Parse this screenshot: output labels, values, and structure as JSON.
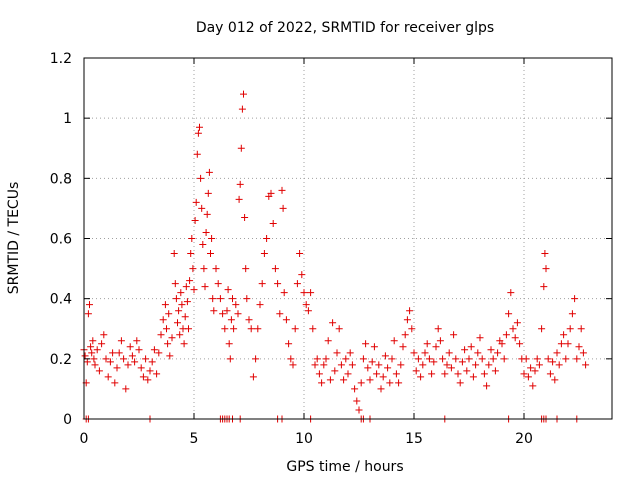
{
  "chart_data": {
    "type": "scatter",
    "title": "Day 012 of 2022, SRMTID for receiver glps",
    "xlabel": "GPS time / hours",
    "ylabel": "SRMTID / TECUs",
    "xlim": [
      0,
      24
    ],
    "ylim": [
      0,
      1.2
    ],
    "xticks": [
      0,
      5,
      10,
      15,
      20
    ],
    "xtick_labels": [
      "0",
      "5",
      "10",
      "15",
      "20"
    ],
    "yticks": [
      0,
      0.2,
      0.4,
      0.6,
      0.8,
      1,
      1.2
    ],
    "ytick_labels": [
      "0",
      "0.2",
      "0.4",
      "0.6",
      "0.8",
      "1",
      "1.2"
    ],
    "grid": true,
    "marker": "+",
    "color": "#e00000",
    "series": [
      {
        "name": "SRMTID",
        "points": [
          [
            0.0,
            0.23
          ],
          [
            0.05,
            0.21
          ],
          [
            0.1,
            0.12
          ],
          [
            0.15,
            0.19
          ],
          [
            0.2,
            0.35
          ],
          [
            0.25,
            0.38
          ],
          [
            0.3,
            0.24
          ],
          [
            0.35,
            0.22
          ],
          [
            0.4,
            0.26
          ],
          [
            0.45,
            0.2
          ],
          [
            0.5,
            0.18
          ],
          [
            0.6,
            0.23
          ],
          [
            0.7,
            0.16
          ],
          [
            0.8,
            0.25
          ],
          [
            0.9,
            0.28
          ],
          [
            1.0,
            0.2
          ],
          [
            1.1,
            0.14
          ],
          [
            1.2,
            0.19
          ],
          [
            1.3,
            0.22
          ],
          [
            1.4,
            0.12
          ],
          [
            1.5,
            0.17
          ],
          [
            1.6,
            0.22
          ],
          [
            1.7,
            0.26
          ],
          [
            1.8,
            0.2
          ],
          [
            1.9,
            0.1
          ],
          [
            2.0,
            0.18
          ],
          [
            2.1,
            0.24
          ],
          [
            2.2,
            0.21
          ],
          [
            2.3,
            0.19
          ],
          [
            2.4,
            0.26
          ],
          [
            2.5,
            0.23
          ],
          [
            2.6,
            0.17
          ],
          [
            2.7,
            0.14
          ],
          [
            2.8,
            0.2
          ],
          [
            2.9,
            0.13
          ],
          [
            3.0,
            0.16
          ],
          [
            3.1,
            0.19
          ],
          [
            3.2,
            0.23
          ],
          [
            3.3,
            0.15
          ],
          [
            3.4,
            0.22
          ],
          [
            3.5,
            0.28
          ],
          [
            3.6,
            0.33
          ],
          [
            3.7,
            0.38
          ],
          [
            3.75,
            0.3
          ],
          [
            3.8,
            0.25
          ],
          [
            3.85,
            0.35
          ],
          [
            3.9,
            0.21
          ],
          [
            4.0,
            0.27
          ],
          [
            4.1,
            0.55
          ],
          [
            4.15,
            0.45
          ],
          [
            4.2,
            0.4
          ],
          [
            4.25,
            0.32
          ],
          [
            4.3,
            0.36
          ],
          [
            4.35,
            0.28
          ],
          [
            4.4,
            0.42
          ],
          [
            4.45,
            0.38
          ],
          [
            4.5,
            0.3
          ],
          [
            4.55,
            0.25
          ],
          [
            4.6,
            0.34
          ],
          [
            4.65,
            0.44
          ],
          [
            4.7,
            0.39
          ],
          [
            4.75,
            0.3
          ],
          [
            4.8,
            0.46
          ],
          [
            4.85,
            0.55
          ],
          [
            4.9,
            0.6
          ],
          [
            4.95,
            0.5
          ],
          [
            5.0,
            0.43
          ],
          [
            5.05,
            0.66
          ],
          [
            5.1,
            0.72
          ],
          [
            5.15,
            0.88
          ],
          [
            5.2,
            0.95
          ],
          [
            5.25,
            0.97
          ],
          [
            5.3,
            0.8
          ],
          [
            5.35,
            0.7
          ],
          [
            5.4,
            0.58
          ],
          [
            5.45,
            0.5
          ],
          [
            5.5,
            0.44
          ],
          [
            5.55,
            0.62
          ],
          [
            5.6,
            0.68
          ],
          [
            5.65,
            0.75
          ],
          [
            5.7,
            0.82
          ],
          [
            5.75,
            0.55
          ],
          [
            5.8,
            0.6
          ],
          [
            5.85,
            0.4
          ],
          [
            5.9,
            0.36
          ],
          [
            6.0,
            0.5
          ],
          [
            6.1,
            0.45
          ],
          [
            6.2,
            0.4
          ],
          [
            6.3,
            0.35
          ],
          [
            6.4,
            0.3
          ],
          [
            6.5,
            0.36
          ],
          [
            6.55,
            0.43
          ],
          [
            6.6,
            0.25
          ],
          [
            6.65,
            0.2
          ],
          [
            6.7,
            0.33
          ],
          [
            6.75,
            0.4
          ],
          [
            6.8,
            0.3
          ],
          [
            6.9,
            0.38
          ],
          [
            7.0,
            0.35
          ],
          [
            7.05,
            0.73
          ],
          [
            7.1,
            0.78
          ],
          [
            7.15,
            0.9
          ],
          [
            7.2,
            1.03
          ],
          [
            7.25,
            1.08
          ],
          [
            7.3,
            0.67
          ],
          [
            7.35,
            0.5
          ],
          [
            7.4,
            0.4
          ],
          [
            7.5,
            0.33
          ],
          [
            7.6,
            0.3
          ],
          [
            7.7,
            0.14
          ],
          [
            7.8,
            0.2
          ],
          [
            7.9,
            0.3
          ],
          [
            8.0,
            0.38
          ],
          [
            8.1,
            0.45
          ],
          [
            8.2,
            0.55
          ],
          [
            8.3,
            0.6
          ],
          [
            8.4,
            0.74
          ],
          [
            8.5,
            0.75
          ],
          [
            8.6,
            0.65
          ],
          [
            8.7,
            0.5
          ],
          [
            8.8,
            0.45
          ],
          [
            8.9,
            0.35
          ],
          [
            9.0,
            0.76
          ],
          [
            9.05,
            0.7
          ],
          [
            9.1,
            0.42
          ],
          [
            9.2,
            0.33
          ],
          [
            9.3,
            0.25
          ],
          [
            9.4,
            0.2
          ],
          [
            9.5,
            0.18
          ],
          [
            9.6,
            0.3
          ],
          [
            9.7,
            0.45
          ],
          [
            9.8,
            0.55
          ],
          [
            9.9,
            0.48
          ],
          [
            10.0,
            0.42
          ],
          [
            10.1,
            0.38
          ],
          [
            10.2,
            0.36
          ],
          [
            10.3,
            0.42
          ],
          [
            10.4,
            0.3
          ],
          [
            10.5,
            0.18
          ],
          [
            10.6,
            0.2
          ],
          [
            10.7,
            0.15
          ],
          [
            10.8,
            0.12
          ],
          [
            10.9,
            0.18
          ],
          [
            11.0,
            0.2
          ],
          [
            11.1,
            0.26
          ],
          [
            11.2,
            0.13
          ],
          [
            11.3,
            0.32
          ],
          [
            11.4,
            0.16
          ],
          [
            11.5,
            0.22
          ],
          [
            11.6,
            0.3
          ],
          [
            11.7,
            0.18
          ],
          [
            11.8,
            0.13
          ],
          [
            11.9,
            0.2
          ],
          [
            12.0,
            0.15
          ],
          [
            12.1,
            0.22
          ],
          [
            12.2,
            0.18
          ],
          [
            12.3,
            0.1
          ],
          [
            12.4,
            0.06
          ],
          [
            12.5,
            0.03
          ],
          [
            12.6,
            0.12
          ],
          [
            12.7,
            0.2
          ],
          [
            12.8,
            0.25
          ],
          [
            12.9,
            0.17
          ],
          [
            13.0,
            0.13
          ],
          [
            13.1,
            0.19
          ],
          [
            13.2,
            0.24
          ],
          [
            13.3,
            0.15
          ],
          [
            13.4,
            0.18
          ],
          [
            13.5,
            0.1
          ],
          [
            13.6,
            0.14
          ],
          [
            13.7,
            0.21
          ],
          [
            13.8,
            0.17
          ],
          [
            13.9,
            0.12
          ],
          [
            14.0,
            0.2
          ],
          [
            14.1,
            0.26
          ],
          [
            14.2,
            0.15
          ],
          [
            14.3,
            0.12
          ],
          [
            14.4,
            0.18
          ],
          [
            14.5,
            0.24
          ],
          [
            14.6,
            0.28
          ],
          [
            14.7,
            0.33
          ],
          [
            14.8,
            0.36
          ],
          [
            14.9,
            0.3
          ],
          [
            15.0,
            0.22
          ],
          [
            15.1,
            0.16
          ],
          [
            15.2,
            0.2
          ],
          [
            15.3,
            0.14
          ],
          [
            15.4,
            0.18
          ],
          [
            15.5,
            0.22
          ],
          [
            15.6,
            0.25
          ],
          [
            15.7,
            0.2
          ],
          [
            15.8,
            0.15
          ],
          [
            15.9,
            0.19
          ],
          [
            16.0,
            0.24
          ],
          [
            16.1,
            0.3
          ],
          [
            16.2,
            0.26
          ],
          [
            16.3,
            0.2
          ],
          [
            16.4,
            0.15
          ],
          [
            16.5,
            0.18
          ],
          [
            16.6,
            0.22
          ],
          [
            16.7,
            0.17
          ],
          [
            16.8,
            0.28
          ],
          [
            16.9,
            0.2
          ],
          [
            17.0,
            0.15
          ],
          [
            17.1,
            0.12
          ],
          [
            17.2,
            0.19
          ],
          [
            17.3,
            0.23
          ],
          [
            17.4,
            0.16
          ],
          [
            17.5,
            0.2
          ],
          [
            17.6,
            0.24
          ],
          [
            17.7,
            0.14
          ],
          [
            17.8,
            0.18
          ],
          [
            17.9,
            0.22
          ],
          [
            18.0,
            0.27
          ],
          [
            18.1,
            0.2
          ],
          [
            18.2,
            0.15
          ],
          [
            18.3,
            0.11
          ],
          [
            18.4,
            0.18
          ],
          [
            18.5,
            0.23
          ],
          [
            18.6,
            0.2
          ],
          [
            18.7,
            0.16
          ],
          [
            18.8,
            0.22
          ],
          [
            18.9,
            0.26
          ],
          [
            19.0,
            0.25
          ],
          [
            19.1,
            0.2
          ],
          [
            19.2,
            0.28
          ],
          [
            19.3,
            0.35
          ],
          [
            19.4,
            0.42
          ],
          [
            19.5,
            0.3
          ],
          [
            19.6,
            0.27
          ],
          [
            19.7,
            0.32
          ],
          [
            19.8,
            0.25
          ],
          [
            19.9,
            0.2
          ],
          [
            20.0,
            0.15
          ],
          [
            20.1,
            0.2
          ],
          [
            20.2,
            0.14
          ],
          [
            20.3,
            0.17
          ],
          [
            20.4,
            0.11
          ],
          [
            20.5,
            0.16
          ],
          [
            20.6,
            0.2
          ],
          [
            20.7,
            0.18
          ],
          [
            20.8,
            0.3
          ],
          [
            20.9,
            0.44
          ],
          [
            20.95,
            0.55
          ],
          [
            21.0,
            0.5
          ],
          [
            21.1,
            0.2
          ],
          [
            21.2,
            0.15
          ],
          [
            21.3,
            0.19
          ],
          [
            21.4,
            0.13
          ],
          [
            21.5,
            0.22
          ],
          [
            21.6,
            0.18
          ],
          [
            21.7,
            0.25
          ],
          [
            21.8,
            0.28
          ],
          [
            21.9,
            0.2
          ],
          [
            22.0,
            0.25
          ],
          [
            22.1,
            0.3
          ],
          [
            22.2,
            0.35
          ],
          [
            22.3,
            0.4
          ],
          [
            22.4,
            0.2
          ],
          [
            22.5,
            0.24
          ],
          [
            22.6,
            0.3
          ],
          [
            22.7,
            0.22
          ],
          [
            22.8,
            0.18
          ],
          [
            0.1,
            0.0
          ],
          [
            0.2,
            0.0
          ],
          [
            3.0,
            0.0
          ],
          [
            6.2,
            0.0
          ],
          [
            6.3,
            0.0
          ],
          [
            6.4,
            0.0
          ],
          [
            6.5,
            0.0
          ],
          [
            6.6,
            0.0
          ],
          [
            6.75,
            0.0
          ],
          [
            7.1,
            0.0
          ],
          [
            8.8,
            0.0
          ],
          [
            9.0,
            0.0
          ],
          [
            10.3,
            0.0
          ],
          [
            12.6,
            0.0
          ],
          [
            12.7,
            0.0
          ],
          [
            13.0,
            0.0
          ],
          [
            16.4,
            0.0
          ],
          [
            19.3,
            0.0
          ],
          [
            20.8,
            0.0
          ],
          [
            20.9,
            0.0
          ],
          [
            21.0,
            0.0
          ],
          [
            21.5,
            0.0
          ],
          [
            22.4,
            0.0
          ]
        ]
      }
    ]
  }
}
